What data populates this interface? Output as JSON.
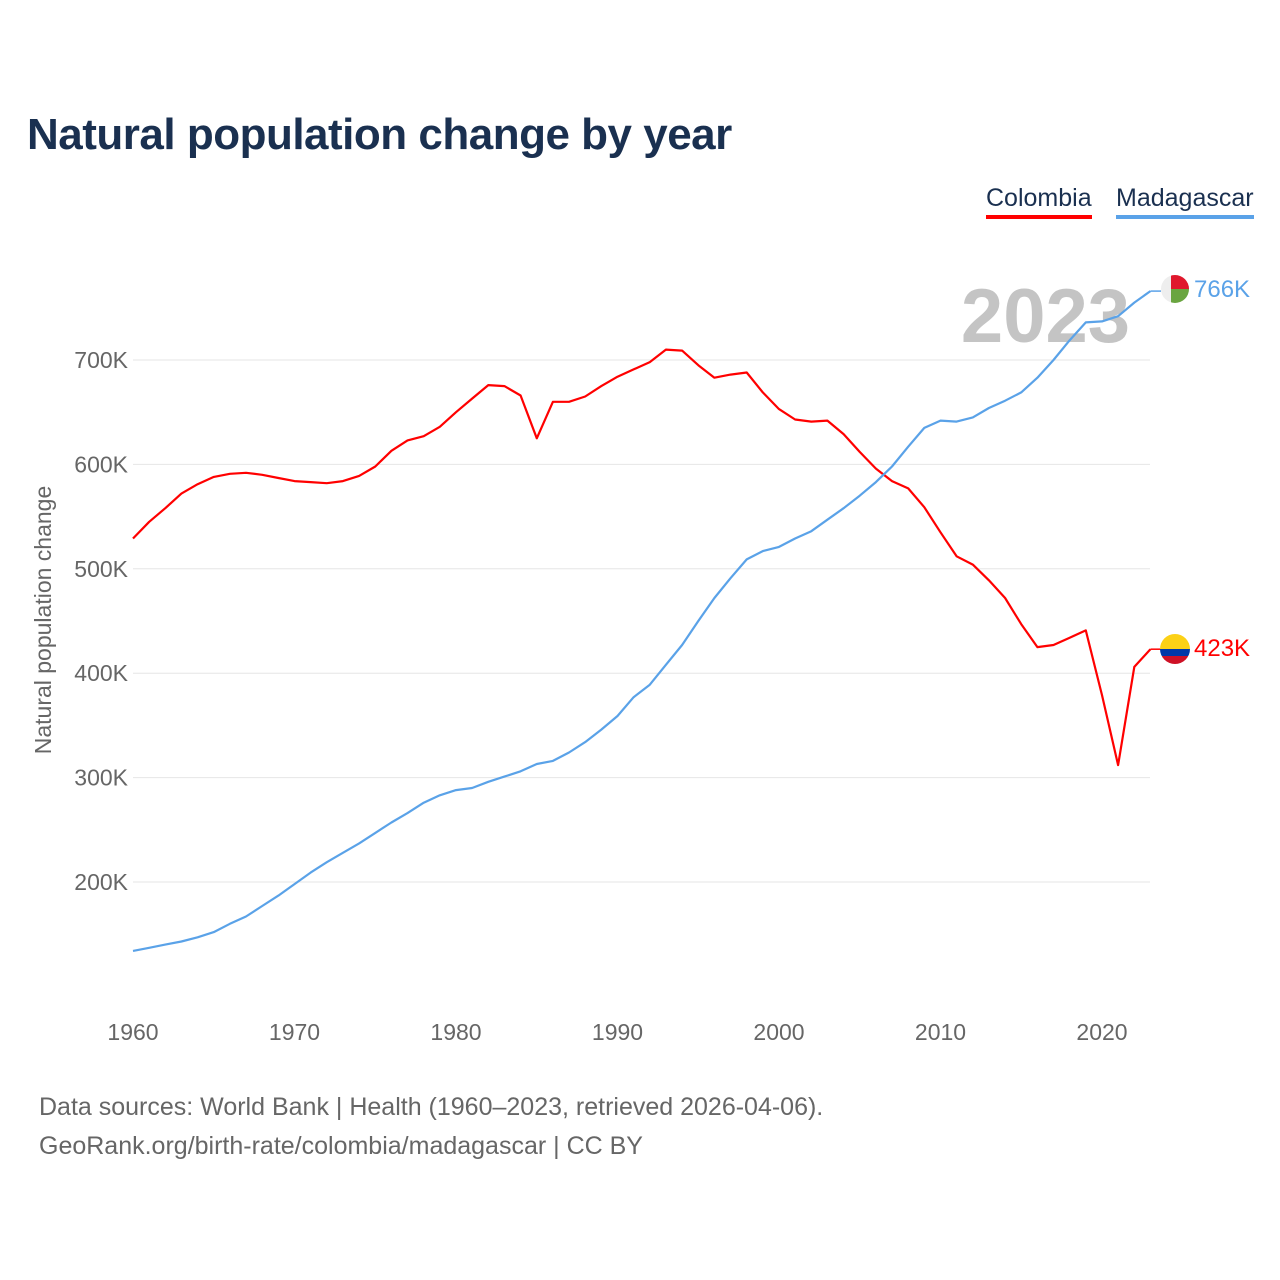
{
  "chart_data": {
    "type": "line",
    "title": "Natural population change by year",
    "xlabel": "",
    "ylabel": "Natural population change",
    "xlim": [
      1960,
      2023
    ],
    "ylim": [
      100000,
      760000
    ],
    "x_ticks": [
      1960,
      1970,
      1980,
      1990,
      2000,
      2010,
      2020
    ],
    "y_ticks": [
      200000,
      300000,
      400000,
      500000,
      600000,
      700000
    ],
    "y_tick_labels": [
      "200K",
      "300K",
      "400K",
      "500K",
      "600K",
      "700K"
    ],
    "grid": true,
    "legend_position": "top-right",
    "year_label": "2023",
    "x": [
      1960,
      1961,
      1962,
      1963,
      1964,
      1965,
      1966,
      1967,
      1968,
      1969,
      1970,
      1971,
      1972,
      1973,
      1974,
      1975,
      1976,
      1977,
      1978,
      1979,
      1980,
      1981,
      1982,
      1983,
      1984,
      1985,
      1986,
      1987,
      1988,
      1989,
      1990,
      1991,
      1992,
      1993,
      1994,
      1995,
      1996,
      1997,
      1998,
      1999,
      2000,
      2001,
      2002,
      2003,
      2004,
      2005,
      2006,
      2007,
      2008,
      2009,
      2010,
      2011,
      2012,
      2013,
      2014,
      2015,
      2016,
      2017,
      2018,
      2019,
      2020,
      2021,
      2022,
      2023
    ],
    "series": [
      {
        "name": "Colombia",
        "color": "#ff0000",
        "end_label": "423K",
        "values": [
          529,
          545,
          558,
          572,
          581,
          588,
          591,
          592,
          590,
          587,
          584,
          583,
          582,
          584,
          589,
          598,
          613,
          623,
          627,
          636,
          650,
          663,
          676,
          675,
          666,
          625,
          660,
          660,
          665,
          675,
          684,
          691,
          698,
          710,
          709,
          695,
          683,
          686,
          688,
          669,
          653,
          643,
          641,
          642,
          629,
          612,
          596,
          584,
          577,
          559,
          535,
          512,
          504,
          489,
          472,
          447,
          425,
          427,
          434,
          441,
          379,
          312,
          406,
          423
        ]
      },
      {
        "name": "Madagascar",
        "color": "#5aa2e8",
        "end_label": "766K",
        "values": [
          134,
          137,
          140,
          143,
          147,
          152,
          160,
          167,
          177,
          187,
          198,
          209,
          219,
          228,
          237,
          247,
          257,
          266,
          276,
          283,
          288,
          290,
          296,
          301,
          306,
          313,
          316,
          324,
          334,
          346,
          359,
          377,
          389,
          408,
          427,
          450,
          472,
          491,
          509,
          517,
          521,
          529,
          536,
          547,
          558,
          570,
          583,
          598,
          617,
          635,
          642,
          641,
          645,
          654,
          661,
          669,
          683,
          700,
          719,
          736,
          737,
          742,
          755,
          766
        ]
      }
    ],
    "value_unit": "thousands"
  },
  "footer": {
    "line1": "Data sources: World Bank | Health (1960–2023, retrieved 2026-04-06).",
    "line2": "GeoRank.org/birth-rate/colombia/madagascar | CC BY"
  }
}
